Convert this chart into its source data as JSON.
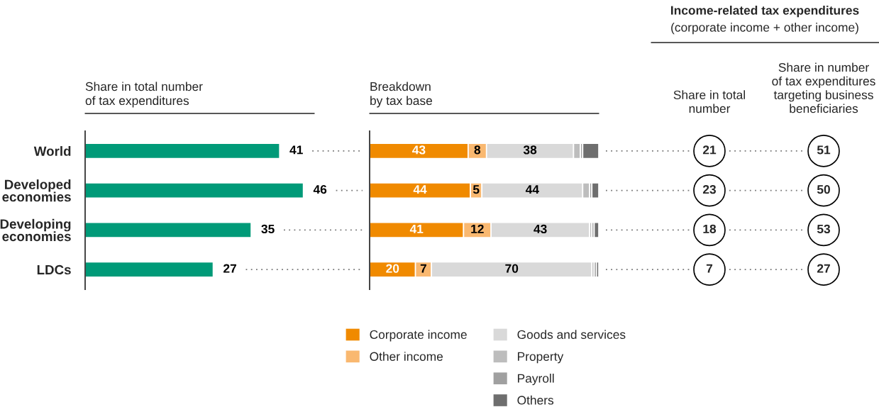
{
  "chart_data": [
    {
      "type": "bar",
      "orientation": "horizontal",
      "title": "Share in total number\nof tax expenditures",
      "categories": [
        "World",
        "Developed\neconomies",
        "Developing\neconomies",
        "LDCs"
      ],
      "values": [
        41,
        46,
        35,
        27
      ],
      "color": "#009a78",
      "data_labels": true,
      "tick_labels": "y"
    },
    {
      "type": "bar",
      "orientation": "horizontal",
      "stacked": true,
      "title": "Breakdown\nby tax base",
      "categories": [
        null,
        null,
        null,
        null
      ],
      "xlim": [
        0,
        100
      ],
      "tick_labels": false,
      "legend": "bottom",
      "series": [
        {
          "name": "Corporate income",
          "color": "#f08a00",
          "values": [
            43,
            44,
            41,
            20
          ],
          "value_labels": [
            "43",
            "44",
            "41",
            "20"
          ]
        },
        {
          "name": "Other income",
          "color": "#f9b870",
          "values": [
            8,
            5,
            12,
            7
          ],
          "value_labels": [
            "8",
            "5",
            "12",
            "7"
          ]
        },
        {
          "name": "Goods and services",
          "color": "#d9d9d9",
          "values": [
            38,
            44,
            43,
            70
          ],
          "value_labels": [
            "38",
            "44",
            "43",
            "70"
          ]
        },
        {
          "name": "Property",
          "color": "#bdbdbd",
          "values": [
            3,
            3,
            1,
            1
          ],
          "value_labels": [
            null,
            null,
            null,
            null
          ]
        },
        {
          "name": "Payroll",
          "color": "#a0a0a0",
          "values": [
            1,
            1,
            1,
            1
          ],
          "value_labels": [
            null,
            null,
            null,
            null
          ]
        },
        {
          "name": "Others",
          "color": "#6e6e6e",
          "values": [
            7,
            3,
            2,
            1
          ],
          "value_labels": [
            null,
            null,
            null,
            null
          ]
        }
      ]
    },
    {
      "type": "other",
      "title": "Share in total\nnumber",
      "categories": [
        null,
        null,
        null,
        null
      ],
      "values": [
        21,
        23,
        18,
        7
      ],
      "data_labels": true,
      "annotations": [
        "Income-related tax expenditures",
        "(corporate income + other income)"
      ]
    },
    {
      "type": "other",
      "title": "Share in number\nof tax expenditures\ntargeting business\nbeneficiaries",
      "categories": [
        null,
        null,
        null,
        null
      ],
      "values": [
        51,
        50,
        53,
        27
      ],
      "data_labels": true
    }
  ]
}
